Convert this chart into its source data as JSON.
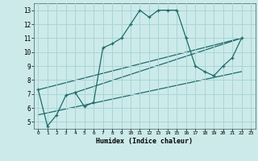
{
  "title": "",
  "xlabel": "Humidex (Indice chaleur)",
  "background_color": "#cceaea",
  "line_color": "#1e6b6b",
  "grid_color": "#aad4d4",
  "xlim": [
    -0.5,
    23.5
  ],
  "ylim": [
    4.5,
    13.5
  ],
  "yticks": [
    5,
    6,
    7,
    8,
    9,
    10,
    11,
    12,
    13
  ],
  "xticks": [
    0,
    1,
    2,
    3,
    4,
    5,
    6,
    7,
    8,
    9,
    10,
    11,
    12,
    13,
    14,
    15,
    16,
    17,
    18,
    19,
    20,
    21,
    22,
    23
  ],
  "curve1_x": [
    0,
    1,
    2,
    3,
    4,
    5,
    6,
    7,
    8,
    9,
    10,
    11,
    12,
    13,
    14,
    15,
    16,
    17,
    18,
    19,
    20,
    21,
    22
  ],
  "curve1_y": [
    7.3,
    4.7,
    5.5,
    6.9,
    7.1,
    6.1,
    6.4,
    10.3,
    10.6,
    11.0,
    12.0,
    13.0,
    12.5,
    13.0,
    13.0,
    13.0,
    11.0,
    9.0,
    8.6,
    8.3,
    9.0,
    9.6,
    11.0
  ],
  "line2_x": [
    0,
    22
  ],
  "line2_y": [
    7.3,
    11.0
  ],
  "line3_x": [
    0,
    22
  ],
  "line3_y": [
    5.5,
    8.6
  ],
  "line4_x": [
    4,
    22
  ],
  "line4_y": [
    7.1,
    11.0
  ]
}
